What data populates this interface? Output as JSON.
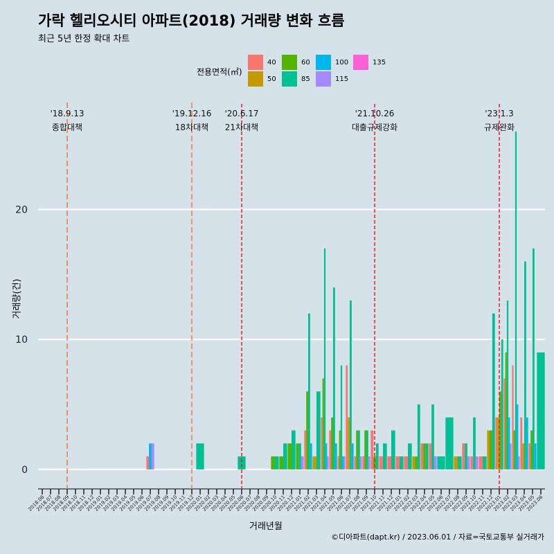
{
  "title": "가락 헬리오시티 아파트(2018) 거래량 변화 흐름",
  "subtitle": "최근 5년 한정 확대 차트",
  "caption": "©디아파트(dapt.kr) / 2023.06.01 / 자료=국토교통부 실거래가",
  "legend": {
    "title": "전용면적(㎡)",
    "items": [
      {
        "label": "40",
        "color": "#f8766d"
      },
      {
        "label": "50",
        "color": "#c49a00"
      },
      {
        "label": "60",
        "color": "#53b400"
      },
      {
        "label": "85",
        "color": "#00c094"
      },
      {
        "label": "100",
        "color": "#00b6eb"
      },
      {
        "label": "115",
        "color": "#a58aff"
      },
      {
        "label": "135",
        "color": "#fb61d7"
      }
    ]
  },
  "chart_data": {
    "type": "bar",
    "xlabel": "거래년월",
    "ylabel": "거래량(건)",
    "ylim": [
      -1.5,
      28.5
    ],
    "yticks": [
      0,
      10,
      20
    ],
    "categories": [
      "2018.06",
      "2018.07",
      "2018.08",
      "2018.09",
      "2018.10",
      "2018.11",
      "2018.12",
      "2019.01",
      "2019.02",
      "2019.03",
      "2019.04",
      "2019.05",
      "2019.06",
      "2019.07",
      "2019.08",
      "2019.09",
      "2019.10",
      "2019.11",
      "2019.12",
      "2020.01",
      "2020.02",
      "2020.03",
      "2020.04",
      "2020.05",
      "2020.06",
      "2020.07",
      "2020.08",
      "2020.09",
      "2020.10",
      "2020.11",
      "2020.12",
      "2021.01",
      "2021.02",
      "2021.03",
      "2021.04",
      "2021.05",
      "2021.06",
      "2021.07",
      "2021.08",
      "2021.09",
      "2021.10",
      "2021.11",
      "2021.12",
      "2022.01",
      "2022.02",
      "2022.03",
      "2022.04",
      "2022.05",
      "2022.06",
      "2022.07",
      "2022.08",
      "2022.09",
      "2022.10",
      "2022.11",
      "2022.12",
      "2023.01",
      "2023.02",
      "2023.03",
      "2023.04",
      "2023.05",
      "2023.06"
    ],
    "series": [
      {
        "name": "40",
        "values": [
          0,
          0,
          0,
          0,
          0,
          0,
          0,
          0,
          0,
          0,
          0,
          0,
          0,
          1,
          0,
          0,
          0,
          0,
          0,
          0,
          0,
          0,
          0,
          0,
          0,
          0,
          0,
          0,
          0,
          0,
          0,
          0,
          3,
          0,
          4,
          3,
          1,
          8,
          1,
          1,
          3,
          1,
          1,
          1,
          1,
          0,
          2,
          2,
          0,
          0,
          0,
          2,
          1,
          1,
          0,
          4,
          7,
          8,
          4,
          2,
          0
        ]
      },
      {
        "name": "50",
        "values": [
          0,
          0,
          0,
          0,
          0,
          0,
          0,
          0,
          0,
          0,
          0,
          0,
          0,
          0,
          0,
          0,
          0,
          0,
          0,
          0,
          0,
          0,
          0,
          0,
          0,
          0,
          0,
          0,
          0,
          0,
          0,
          0,
          0,
          1,
          0,
          0,
          0,
          4,
          0,
          0,
          0,
          0,
          0,
          0,
          0,
          1,
          0,
          0,
          0,
          0,
          1,
          0,
          0,
          0,
          3,
          4,
          0,
          0,
          2,
          0,
          0
        ]
      },
      {
        "name": "60",
        "values": [
          0,
          0,
          0,
          0,
          0,
          0,
          0,
          0,
          0,
          0,
          0,
          0,
          0,
          0,
          0,
          0,
          0,
          0,
          0,
          0,
          0,
          0,
          0,
          0,
          0,
          0,
          0,
          0,
          1,
          1,
          2,
          2,
          6,
          0,
          7,
          4,
          3,
          0,
          3,
          3,
          1,
          0,
          0,
          0,
          0,
          1,
          2,
          0,
          0,
          0,
          0,
          0,
          0,
          0,
          3,
          6,
          9,
          3,
          0,
          3,
          0
        ]
      },
      {
        "name": "85",
        "values": [
          0,
          0,
          0,
          0,
          0,
          0,
          0,
          0,
          0,
          0,
          0,
          0,
          0,
          0,
          0,
          0,
          0,
          0,
          0,
          2,
          0,
          0,
          0,
          0,
          1,
          0,
          0,
          0,
          1,
          2,
          3,
          2,
          12,
          6,
          17,
          14,
          8,
          13,
          3,
          3,
          2,
          2,
          3,
          1,
          2,
          5,
          2,
          5,
          1,
          4,
          1,
          2,
          4,
          1,
          12,
          10,
          13,
          26,
          16,
          17,
          9
        ]
      },
      {
        "name": "100",
        "values": [
          0,
          0,
          0,
          0,
          0,
          0,
          0,
          0,
          0,
          0,
          0,
          0,
          0,
          2,
          0,
          0,
          0,
          0,
          0,
          0,
          0,
          0,
          0,
          0,
          0,
          0,
          0,
          0,
          0,
          0,
          0,
          0,
          2,
          0,
          2,
          2,
          1,
          2,
          0,
          0,
          0,
          0,
          0,
          0,
          0,
          0,
          0,
          0,
          0,
          0,
          0,
          0,
          0,
          0,
          0,
          0,
          4,
          5,
          4,
          2,
          0
        ]
      },
      {
        "name": "115",
        "values": [
          0,
          0,
          0,
          0,
          0,
          0,
          0,
          0,
          0,
          0,
          0,
          0,
          0,
          2,
          0,
          0,
          0,
          0,
          0,
          0,
          0,
          0,
          0,
          0,
          0,
          0,
          0,
          0,
          0,
          0,
          0,
          1,
          0,
          0,
          1,
          0,
          1,
          0,
          1,
          1,
          0,
          0,
          0,
          0,
          0,
          0,
          0,
          1,
          0,
          0,
          0,
          1,
          1,
          0,
          0,
          0,
          2,
          1,
          0,
          0,
          0
        ]
      },
      {
        "name": "135",
        "values": [
          0,
          0,
          0,
          0,
          0,
          0,
          0,
          0,
          0,
          0,
          0,
          0,
          0,
          0,
          0,
          0,
          0,
          0,
          0,
          0,
          0,
          0,
          0,
          0,
          0,
          0,
          0,
          0,
          0,
          0,
          0,
          0,
          0,
          0,
          0,
          0,
          0,
          0,
          0,
          0,
          0,
          0,
          0,
          0,
          0,
          0,
          0,
          0,
          0,
          0,
          0,
          0,
          0,
          0,
          0,
          0,
          0,
          0,
          0,
          0,
          0
        ]
      }
    ],
    "events": [
      {
        "date": "'18.9.13",
        "label": "종합대책",
        "x": "2018.09",
        "style": "long",
        "color": "#f4793b"
      },
      {
        "date": "'19.12.16",
        "label": "18차대책",
        "x": "2019.12",
        "style": "long",
        "color": "#f4793b"
      },
      {
        "date": "'20.6.17",
        "label": "21차대책",
        "x": "2020.06",
        "style": "short",
        "color": "#ee1c1c"
      },
      {
        "date": "'21.10.26",
        "label": "대출규제강화",
        "x": "2021.10",
        "style": "short",
        "color": "#ee1c1c"
      },
      {
        "date": "'23.1.3",
        "label": "규제완화",
        "x": "2023.01",
        "style": "short",
        "color": "#ee1c1c"
      }
    ]
  }
}
